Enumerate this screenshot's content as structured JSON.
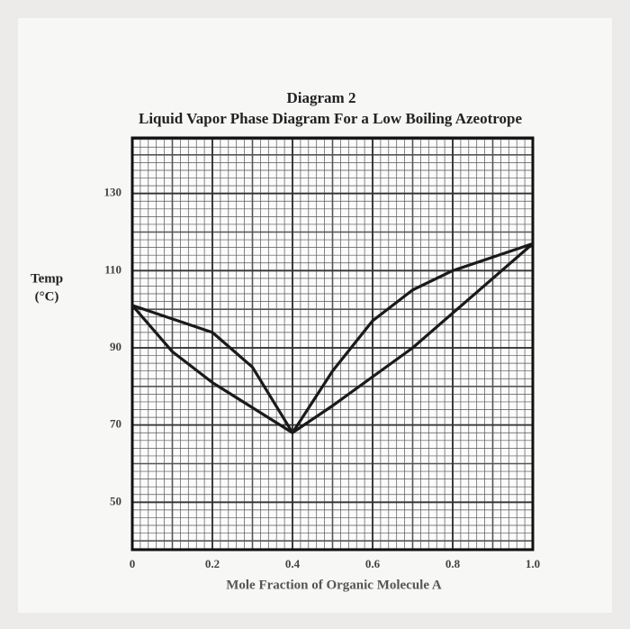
{
  "chart_data": {
    "type": "line",
    "title": "Diagram 2",
    "subtitle": "Liquid Vapor Phase Diagram For a Low Boiling Azeotrope",
    "xlabel": "Mole Fraction of Organic Molecule A",
    "ylabel": "Temp",
    "ylabel_unit": "(°C)",
    "x": [
      0,
      0.1,
      0.2,
      0.3,
      0.4,
      0.5,
      0.6,
      0.7,
      0.8,
      0.9,
      1.0
    ],
    "series": [
      {
        "color": "#1a1a1a",
        "values": [
          101,
          97.5,
          94,
          85,
          68,
          84,
          97,
          105,
          110,
          113.5,
          117
        ]
      },
      {
        "color": "#1a1a1a",
        "values": [
          101,
          89,
          81,
          74.5,
          68,
          75,
          82.5,
          90,
          99,
          108,
          117
        ]
      }
    ],
    "xlim": [
      0,
      1
    ],
    "ylim": [
      37.7,
      144.4
    ],
    "xticks": [
      0,
      0.2,
      0.4,
      0.6,
      0.8,
      {
        "value": 1,
        "label": "1.0"
      }
    ],
    "yticks": [
      50,
      70,
      90,
      110,
      130
    ],
    "grid": true
  }
}
